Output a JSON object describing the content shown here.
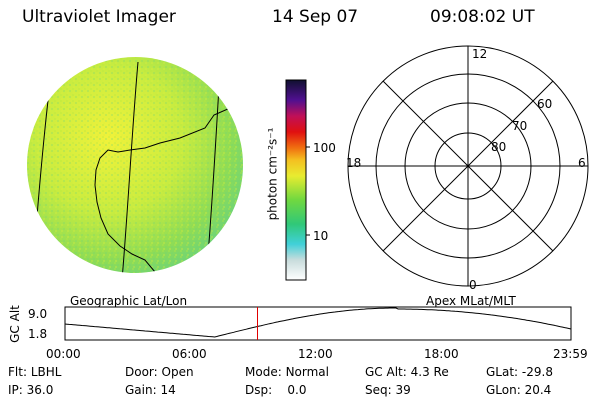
{
  "header": {
    "instrument": "Ultraviolet Imager",
    "date": "14 Sep 07",
    "time": "09:08:02 UT"
  },
  "colorbar": {
    "label": "photon cm⁻²s⁻¹",
    "ticks": [
      "100",
      "10"
    ]
  },
  "polar_plot": {
    "mlt_labels": {
      "top": "12",
      "left": "18",
      "right": "6",
      "bottom": "0"
    },
    "lat_labels": [
      "60",
      "70",
      "80"
    ]
  },
  "altitude_plot": {
    "left_title": "Geographic Lat/Lon",
    "right_title": "Apex MLat/MLT",
    "y_axis_label": "GC Alt",
    "y_ticks": [
      "9.0",
      "1.8"
    ],
    "x_ticks": [
      "00:00",
      "06:00",
      "12:00",
      "18:00",
      "23:59"
    ],
    "current_time_marker_hours": 9.13
  },
  "status": {
    "row1": [
      {
        "key": "Flt:",
        "value": "LBHL"
      },
      {
        "key": "Door:",
        "value": "Open"
      },
      {
        "key": "Mode:",
        "value": "Normal"
      },
      {
        "key": "GC Alt:",
        "value": "4.3 Re"
      },
      {
        "key": "GLat:",
        "value": "-29.8"
      }
    ],
    "row2": [
      {
        "key": "IP:",
        "value": "36.0"
      },
      {
        "key": "Gain:",
        "value": "14"
      },
      {
        "key": "Dsp:",
        "value": "0.0"
      },
      {
        "key": "Seq:",
        "value": "39"
      },
      {
        "key": "GLon:",
        "value": "20.4"
      }
    ]
  },
  "colors": {
    "marker": "#e00000",
    "earth_yellow": "#e6f03a",
    "earth_green": "#8ed84a",
    "earth_teal": "#5ccf8a"
  }
}
